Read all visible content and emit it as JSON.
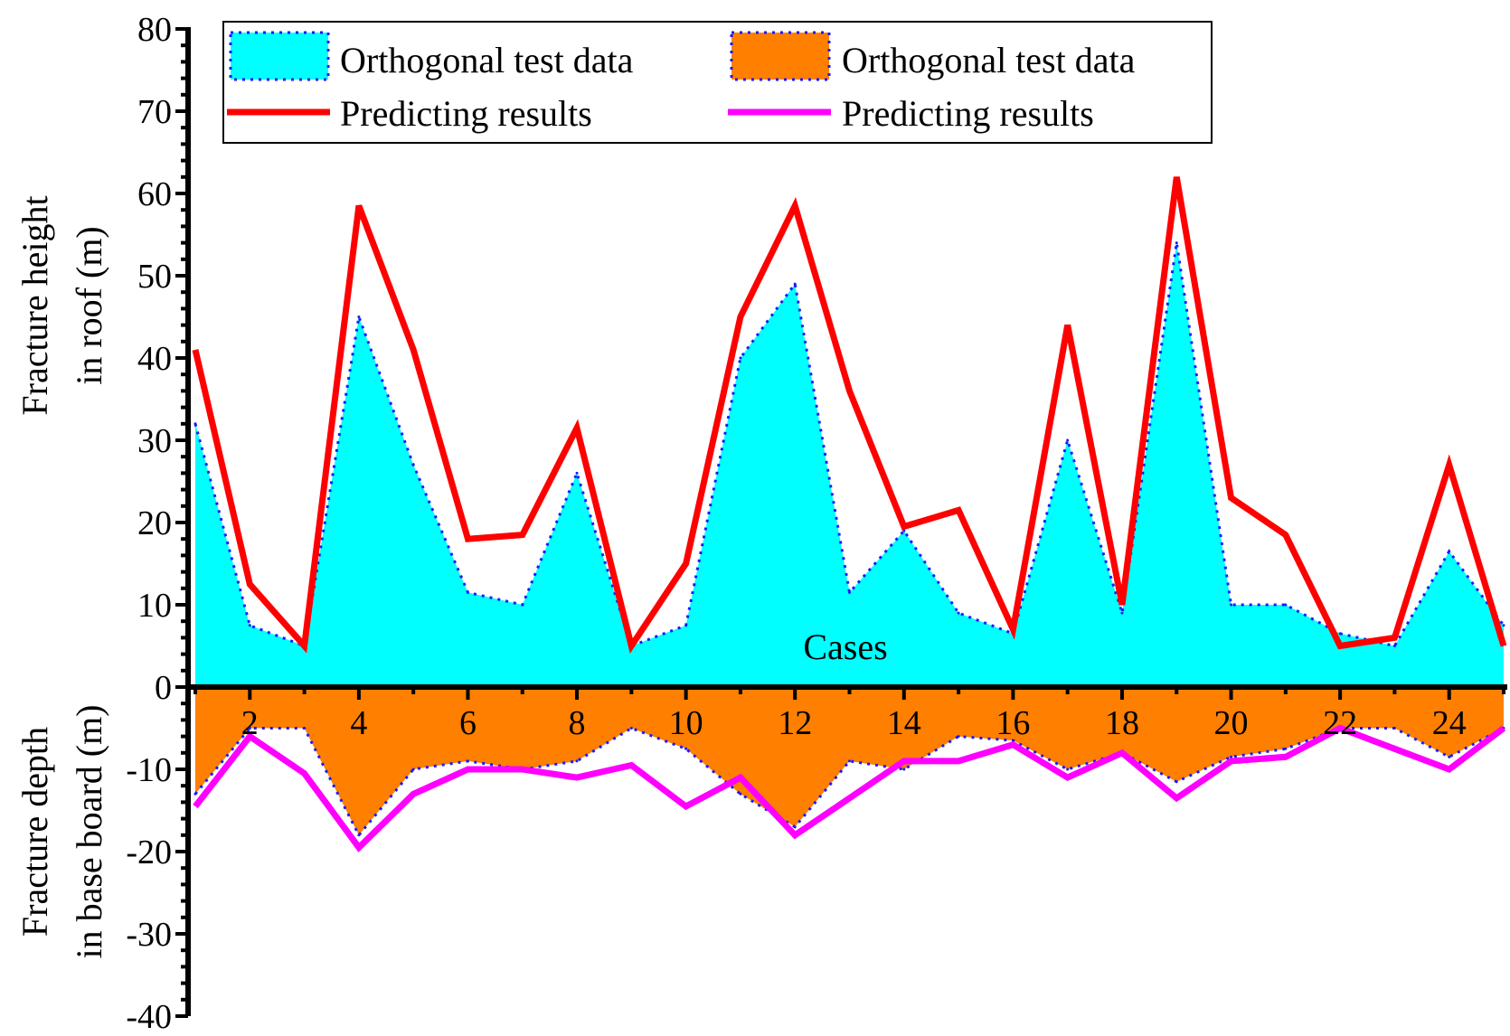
{
  "chart_data": {
    "type": "area",
    "xlabel": "Cases",
    "ylabel_upper_line1": "Fracture height",
    "ylabel_upper_line2": "in roof (m)",
    "ylabel_lower_line1": "Fracture depth",
    "ylabel_lower_line2": "in base board (m)",
    "ylim": [
      -40,
      80
    ],
    "xlim": [
      1,
      25
    ],
    "yticks": [
      80,
      70,
      60,
      50,
      40,
      30,
      20,
      10,
      0,
      -10,
      -20,
      -30,
      -40
    ],
    "ytick_labels": [
      "80",
      "70",
      "60",
      "50",
      "40",
      "30",
      "20",
      "10",
      "0",
      "-10",
      "-20",
      "-30",
      "-40"
    ],
    "xticks": [
      2,
      4,
      6,
      8,
      10,
      12,
      14,
      16,
      18,
      20,
      22,
      24
    ],
    "xtick_labels": [
      "2",
      "4",
      "6",
      "8",
      "10",
      "12",
      "14",
      "16",
      "18",
      "20",
      "22",
      "24"
    ],
    "x": [
      1,
      2,
      3,
      4,
      5,
      6,
      7,
      8,
      9,
      10,
      11,
      12,
      13,
      14,
      15,
      16,
      17,
      18,
      19,
      20,
      21,
      22,
      23,
      24,
      25
    ],
    "series": [
      {
        "name": "Orthogonal test data",
        "style": "area",
        "color": "#00ffff",
        "edge_color": "#1a1aff",
        "values": [
          32,
          7.5,
          5,
          45,
          27,
          11.5,
          10,
          26,
          5,
          7.5,
          40,
          49,
          11.5,
          19,
          9,
          6.5,
          30,
          9,
          54,
          10,
          10,
          6.5,
          5,
          16.5,
          7.5
        ]
      },
      {
        "name": "Orthogonal test data",
        "style": "area",
        "color": "#ff7f00",
        "edge_color": "#1a1aff",
        "values": [
          -13,
          -5,
          -5,
          -18,
          -10,
          -9,
          -10,
          -9,
          -5,
          -7.5,
          -13,
          -17,
          -9,
          -10,
          -6,
          -6.5,
          -10,
          -8,
          -11.5,
          -8.5,
          -7.5,
          -5,
          -5,
          -8.5,
          -5
        ]
      },
      {
        "name": "Predicting results",
        "style": "line",
        "color": "#ff0000",
        "values": [
          41,
          12.5,
          5,
          58.5,
          41,
          18,
          18.5,
          31.5,
          5,
          15,
          45,
          58.5,
          36,
          19.5,
          21.5,
          7,
          44,
          10,
          62,
          23,
          18.5,
          5,
          6,
          27,
          5
        ]
      },
      {
        "name": "Predicting results",
        "style": "line",
        "color": "#ff00ff",
        "values": [
          -14.5,
          -6,
          -10.5,
          -19.5,
          -13,
          -10,
          -10,
          -11,
          -9.5,
          -14.5,
          -11,
          -18,
          -13.5,
          -9,
          -9,
          -7,
          -11,
          -8,
          -13.5,
          -9,
          -8.5,
          -5,
          -7.5,
          -10,
          -5
        ]
      }
    ],
    "legend": {
      "location": "top",
      "entries": [
        {
          "label": "Orthogonal test data",
          "kind": "patch",
          "color": "#00ffff"
        },
        {
          "label": "Orthogonal test data",
          "kind": "patch",
          "color": "#ff7f00"
        },
        {
          "label": "Predicting results",
          "kind": "line",
          "color": "#ff0000"
        },
        {
          "label": "Predicting results",
          "kind": "line",
          "color": "#ff00ff"
        }
      ]
    },
    "grid": false
  }
}
